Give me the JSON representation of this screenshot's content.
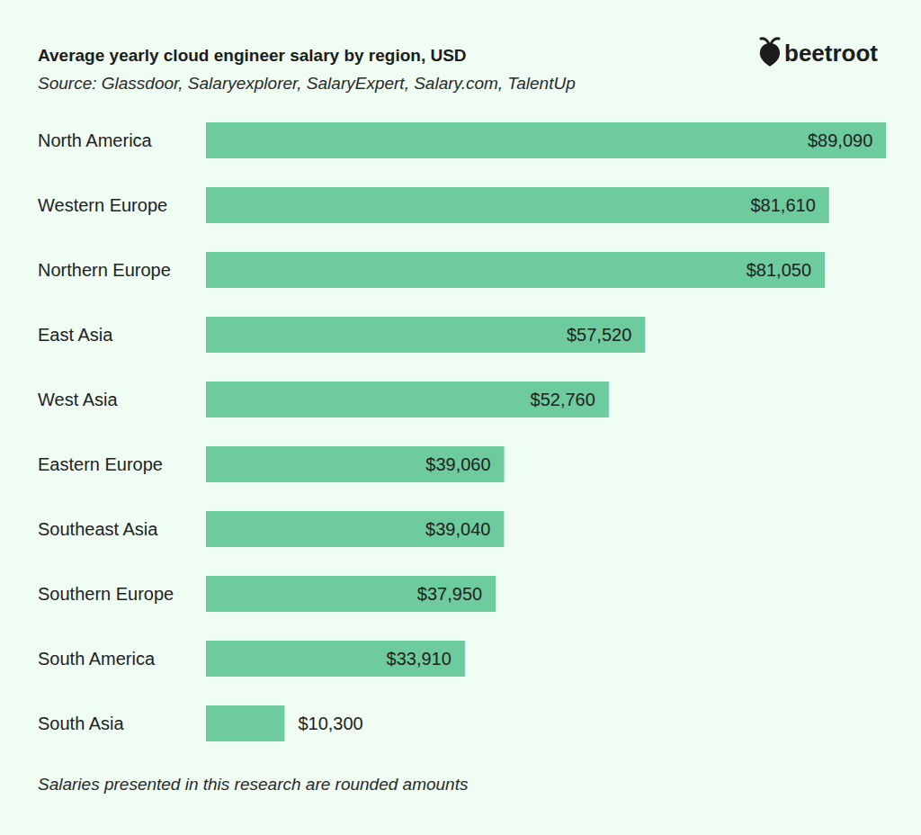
{
  "chart_data": {
    "type": "bar",
    "orientation": "horizontal",
    "title": "Average yearly cloud engineer salary by region, USD",
    "subtitle": "Source: Glassdoor, Salaryexplorer, SalaryExpert, Salary.com, TalentUp",
    "footnote": "Salaries presented in this research are rounded amounts",
    "categories": [
      "North America",
      "Western Europe",
      "Northern Europe",
      "East Asia",
      "West Asia",
      "Eastern Europe",
      "Southeast Asia",
      "Southern Europe",
      "South America",
      "South Asia"
    ],
    "values": [
      89090,
      81610,
      81050,
      57520,
      52760,
      39060,
      39040,
      37950,
      33910,
      10300
    ],
    "value_labels": [
      "$89,090",
      "$81,610",
      "$81,050",
      "$57,520",
      "$52,760",
      "$39,060",
      "$39,040",
      "$37,950",
      "$33,910",
      "$10,300"
    ],
    "color": "#6ecb9e",
    "xlim": [
      0,
      90000
    ],
    "data_labels": true,
    "tick_labels": false,
    "grid": false
  },
  "logo": {
    "text": "beetroot"
  }
}
